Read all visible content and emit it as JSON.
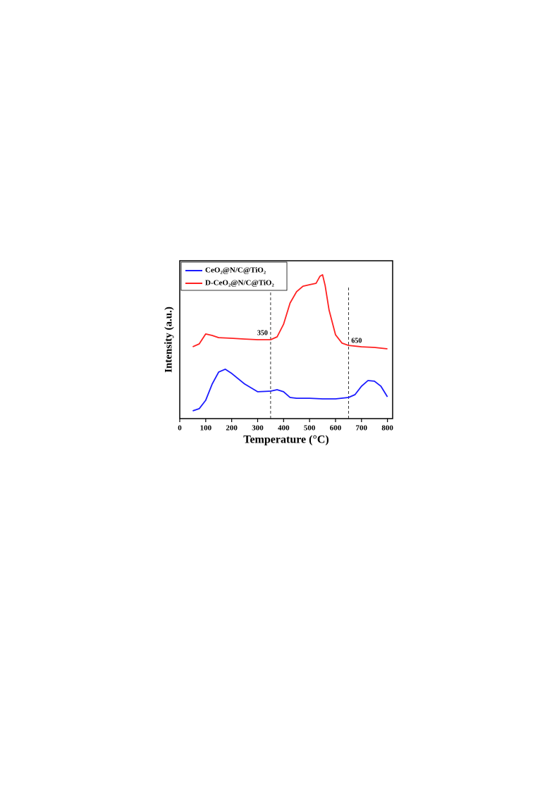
{
  "chart_data": {
    "type": "line",
    "xlabel": "Temperature (°C)",
    "ylabel": "Intensity (a.u.)",
    "xlim": [
      0,
      820
    ],
    "xticks": [
      0,
      100,
      200,
      300,
      400,
      500,
      600,
      700,
      800
    ],
    "ylim": [
      0,
      100
    ],
    "legend": "upper left",
    "annotations": [
      {
        "x": 350,
        "text": "350"
      },
      {
        "x": 650,
        "text": "650"
      }
    ],
    "series": [
      {
        "name": "CeO₂@N/C@TiO₂",
        "color": "#1a1aff",
        "x": [
          50,
          75,
          100,
          125,
          150,
          175,
          200,
          250,
          300,
          350,
          375,
          400,
          425,
          450,
          500,
          550,
          600,
          650,
          675,
          700,
          725,
          750,
          775,
          800
        ],
        "values": [
          4.9,
          6.3,
          11.6,
          21.9,
          29.5,
          31.3,
          28.6,
          21.9,
          17,
          17.4,
          18.3,
          17,
          13.4,
          12.9,
          12.9,
          12.5,
          12.5,
          13.4,
          15.2,
          20.5,
          24.1,
          23.7,
          20.5,
          13.8
        ]
      },
      {
        "name": "D-CeO₂@N/C@TiO₂",
        "color": "#ff2020",
        "x": [
          50,
          75,
          100,
          125,
          150,
          200,
          250,
          300,
          350,
          375,
          400,
          425,
          450,
          475,
          500,
          525,
          540,
          550,
          560,
          575,
          600,
          625,
          650,
          700,
          750,
          800
        ],
        "values": [
          45.5,
          47.3,
          53.6,
          52.7,
          51.3,
          50.9,
          50.4,
          50,
          50,
          51.8,
          59.8,
          73.2,
          80.4,
          83.9,
          84.8,
          85.7,
          90.2,
          91.1,
          84.4,
          68.8,
          53.1,
          47.8,
          46.4,
          45.5,
          45.1,
          44.2
        ]
      }
    ]
  }
}
